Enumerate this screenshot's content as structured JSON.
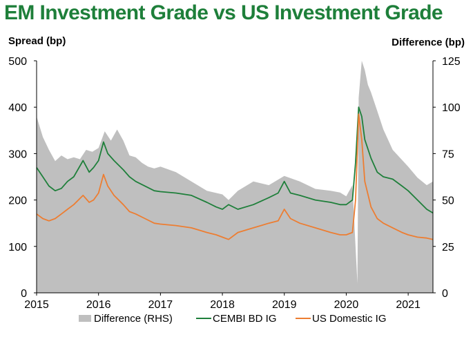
{
  "chart_data": {
    "type": "line",
    "title": "EM Investment Grade vs US Investment Grade",
    "ylabel_left": "Spread (bp)",
    "ylabel_right": "Difference (bp)",
    "xlim": [
      2015.0,
      2021.4
    ],
    "ylim_left": [
      0,
      500
    ],
    "ylim_right": [
      0,
      125
    ],
    "x_ticks": [
      2015,
      2016,
      2017,
      2018,
      2019,
      2020,
      2021
    ],
    "y_ticks_left": [
      0,
      100,
      200,
      300,
      400,
      500
    ],
    "y_ticks_right": [
      0,
      25,
      50,
      75,
      100,
      125
    ],
    "grid": false,
    "legend_position": "bottom",
    "series": [
      {
        "name": "Difference (RHS)",
        "axis": "right",
        "style": "area",
        "color": "#bfbfbf",
        "x": [
          2015.0,
          2015.1,
          2015.2,
          2015.3,
          2015.4,
          2015.5,
          2015.6,
          2015.7,
          2015.8,
          2015.9,
          2016.0,
          2016.1,
          2016.2,
          2016.3,
          2016.4,
          2016.5,
          2016.6,
          2016.7,
          2016.8,
          2016.9,
          2017.0,
          2017.25,
          2017.5,
          2017.75,
          2018.0,
          2018.1,
          2018.25,
          2018.5,
          2018.75,
          2019.0,
          2019.25,
          2019.5,
          2019.75,
          2019.9,
          2020.0,
          2020.1,
          2020.18,
          2020.2,
          2020.25,
          2020.3,
          2020.35,
          2020.4,
          2020.5,
          2020.6,
          2020.75,
          2021.0,
          2021.15,
          2021.3,
          2021.4
        ],
        "values": [
          95,
          84,
          77,
          71,
          74,
          72,
          73,
          72,
          77,
          76,
          78,
          87,
          82,
          88,
          82,
          74,
          73,
          70,
          68,
          67,
          68,
          65,
          60,
          55,
          53,
          50,
          55,
          60,
          58,
          63,
          60,
          56,
          55,
          54,
          52,
          58,
          5,
          105,
          125,
          120,
          112,
          108,
          98,
          88,
          77,
          68,
          62,
          58,
          60
        ]
      },
      {
        "name": "CEMBI BD IG",
        "axis": "left",
        "style": "line",
        "color": "#1e7f3a",
        "x": [
          2015.0,
          2015.1,
          2015.2,
          2015.3,
          2015.4,
          2015.5,
          2015.6,
          2015.75,
          2015.85,
          2015.92,
          2016.0,
          2016.08,
          2016.15,
          2016.25,
          2016.4,
          2016.5,
          2016.6,
          2016.75,
          2016.9,
          2017.0,
          2017.25,
          2017.5,
          2017.75,
          2017.9,
          2018.0,
          2018.1,
          2018.25,
          2018.5,
          2018.75,
          2018.9,
          2019.0,
          2019.1,
          2019.25,
          2019.5,
          2019.75,
          2019.9,
          2020.0,
          2020.1,
          2020.15,
          2020.2,
          2020.25,
          2020.3,
          2020.4,
          2020.5,
          2020.6,
          2020.75,
          2020.9,
          2021.0,
          2021.15,
          2021.3,
          2021.4
        ],
        "values": [
          270,
          250,
          230,
          220,
          225,
          240,
          250,
          285,
          260,
          270,
          285,
          325,
          300,
          285,
          265,
          250,
          240,
          230,
          220,
          218,
          215,
          210,
          195,
          185,
          180,
          190,
          180,
          190,
          205,
          215,
          240,
          215,
          210,
          200,
          195,
          190,
          190,
          200,
          280,
          400,
          380,
          330,
          290,
          260,
          250,
          245,
          230,
          220,
          200,
          180,
          172
        ]
      },
      {
        "name": "US Domestic IG",
        "axis": "left",
        "style": "line",
        "color": "#ed7d31",
        "x": [
          2015.0,
          2015.1,
          2015.2,
          2015.3,
          2015.4,
          2015.5,
          2015.6,
          2015.75,
          2015.85,
          2015.92,
          2016.0,
          2016.08,
          2016.15,
          2016.25,
          2016.4,
          2016.5,
          2016.6,
          2016.75,
          2016.9,
          2017.0,
          2017.25,
          2017.5,
          2017.75,
          2017.9,
          2018.0,
          2018.1,
          2018.25,
          2018.5,
          2018.75,
          2018.9,
          2019.0,
          2019.1,
          2019.25,
          2019.5,
          2019.75,
          2019.9,
          2020.0,
          2020.1,
          2020.15,
          2020.2,
          2020.25,
          2020.3,
          2020.4,
          2020.5,
          2020.6,
          2020.75,
          2020.9,
          2021.0,
          2021.15,
          2021.3,
          2021.4
        ],
        "values": [
          170,
          160,
          155,
          160,
          170,
          180,
          190,
          210,
          195,
          200,
          215,
          255,
          230,
          210,
          190,
          175,
          170,
          160,
          150,
          148,
          145,
          140,
          130,
          125,
          120,
          115,
          130,
          140,
          150,
          155,
          180,
          160,
          150,
          140,
          130,
          125,
          125,
          130,
          200,
          385,
          330,
          240,
          185,
          160,
          150,
          140,
          130,
          125,
          120,
          118,
          115
        ]
      }
    ]
  }
}
